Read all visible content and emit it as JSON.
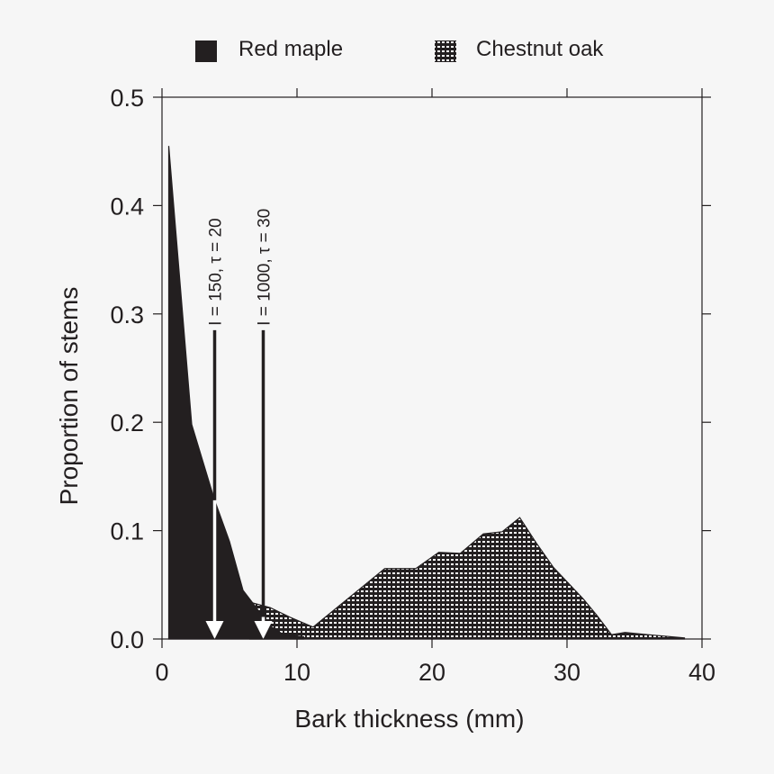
{
  "chart_data": {
    "type": "area",
    "title": "",
    "xlabel": "Bark thickness (mm)",
    "ylabel": "Proportion of stems",
    "xlim": [
      0,
      40
    ],
    "ylim": [
      0,
      0.5
    ],
    "xticks": [
      "0",
      "10",
      "20",
      "30",
      "40"
    ],
    "yticks": [
      "0.0",
      "0.1",
      "0.2",
      "0.3",
      "0.4",
      "0.5"
    ],
    "grid": false,
    "legend_position": "top",
    "series": [
      {
        "name": "Red maple",
        "fill": "solid",
        "color": "#231f20",
        "x": [
          0.5,
          2.2,
          3.9,
          5.0,
          6.0,
          6.8,
          8.0,
          9.0,
          10.5
        ],
        "y": [
          0.455,
          0.198,
          0.128,
          0.09,
          0.045,
          0.032,
          0.012,
          0.004,
          0.002
        ]
      },
      {
        "name": "Chestnut oak",
        "fill": "checkered",
        "color": "#231f20",
        "x": [
          6.5,
          8.0,
          9.5,
          11.2,
          16.5,
          18.8,
          20.5,
          22.1,
          23.8,
          25.2,
          26.5,
          27.7,
          29.0,
          31.2,
          32.2,
          33.3,
          34.3,
          36.0,
          38.7
        ],
        "y": [
          0.034,
          0.029,
          0.02,
          0.011,
          0.065,
          0.065,
          0.08,
          0.079,
          0.097,
          0.099,
          0.112,
          0.089,
          0.066,
          0.037,
          0.022,
          0.004,
          0.006,
          0.004,
          0.001
        ]
      }
    ],
    "annotations": [
      {
        "label": "I = 150, τ = 20",
        "x": 3.9,
        "y_from": 0.285,
        "y_to": 0
      },
      {
        "label": "I = 1000, τ = 30",
        "x": 7.5,
        "y_from": 0.285,
        "y_to": 0
      }
    ]
  }
}
